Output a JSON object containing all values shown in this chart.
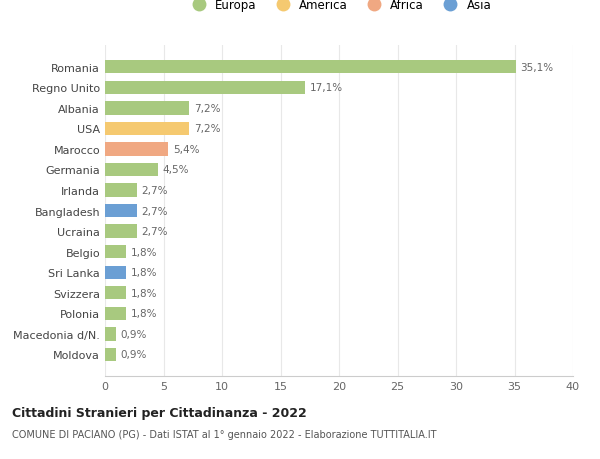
{
  "categories": [
    "Moldova",
    "Macedonia d/N.",
    "Polonia",
    "Svizzera",
    "Sri Lanka",
    "Belgio",
    "Ucraina",
    "Bangladesh",
    "Irlanda",
    "Germania",
    "Marocco",
    "USA",
    "Albania",
    "Regno Unito",
    "Romania"
  ],
  "values": [
    0.9,
    0.9,
    1.8,
    1.8,
    1.8,
    1.8,
    2.7,
    2.7,
    2.7,
    4.5,
    5.4,
    7.2,
    7.2,
    17.1,
    35.1
  ],
  "labels": [
    "0,9%",
    "0,9%",
    "1,8%",
    "1,8%",
    "1,8%",
    "1,8%",
    "2,7%",
    "2,7%",
    "2,7%",
    "4,5%",
    "5,4%",
    "7,2%",
    "7,2%",
    "17,1%",
    "35,1%"
  ],
  "continents": [
    "Europa",
    "Europa",
    "Europa",
    "Europa",
    "Asia",
    "Europa",
    "Europa",
    "Asia",
    "Europa",
    "Europa",
    "Africa",
    "America",
    "Europa",
    "Europa",
    "Europa"
  ],
  "continent_colors": {
    "Europa": "#a8c97f",
    "America": "#f5c970",
    "Africa": "#f0a882",
    "Asia": "#6b9fd4"
  },
  "legend_order": [
    "Europa",
    "America",
    "Africa",
    "Asia"
  ],
  "title": "Cittadini Stranieri per Cittadinanza - 2022",
  "subtitle": "COMUNE DI PACIANO (PG) - Dati ISTAT al 1° gennaio 2022 - Elaborazione TUTTITALIA.IT",
  "xlim": [
    0,
    40
  ],
  "xticks": [
    0,
    5,
    10,
    15,
    20,
    25,
    30,
    35,
    40
  ],
  "background_color": "#ffffff",
  "grid_color": "#e8e8e8"
}
